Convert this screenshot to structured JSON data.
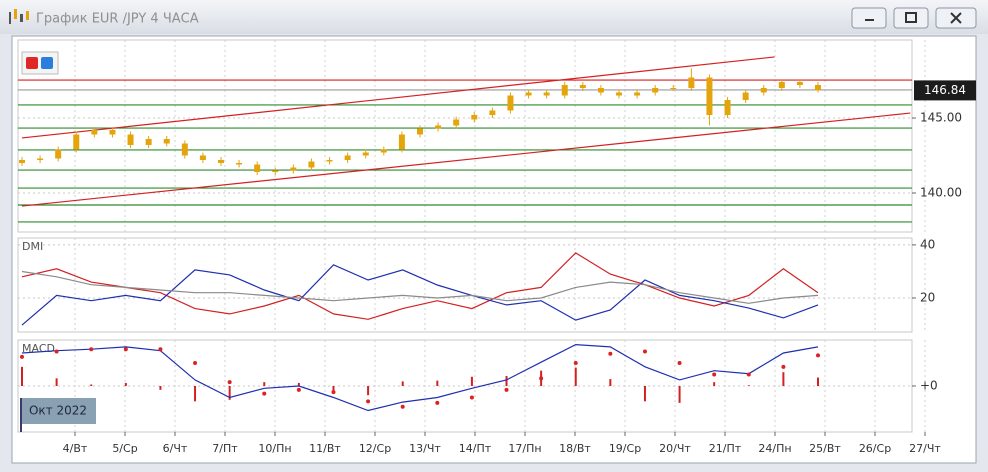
{
  "window": {
    "title": "График EUR /JPY  4 ЧАСА",
    "period_label": "Окт 2022"
  },
  "chart_data": [
    {
      "type": "candlestick",
      "open": [
        142.0,
        142.2,
        142.3,
        142.9,
        143.9,
        144.2,
        143.9,
        143.2,
        143.6,
        143.3,
        142.5,
        142.2,
        142.0,
        141.9,
        141.4,
        141.5,
        141.7,
        142.1,
        142.2,
        142.5,
        142.7,
        142.9,
        143.9,
        144.3,
        144.5,
        144.9,
        145.2,
        145.5,
        146.5,
        146.7,
        146.5,
        147.2,
        147.0,
        146.7,
        146.5,
        146.7,
        147.0,
        147.0,
        147.7,
        145.2,
        146.2,
        146.7,
        147.0,
        147.4,
        147.2
      ],
      "high": [
        142.4,
        142.5,
        143.1,
        144.1,
        144.4,
        144.4,
        144.1,
        143.8,
        143.8,
        143.5,
        142.7,
        142.4,
        142.2,
        142.1,
        141.7,
        141.9,
        142.3,
        142.4,
        142.7,
        142.9,
        143.1,
        144.1,
        144.5,
        144.7,
        145.1,
        145.4,
        145.7,
        146.7,
        146.9,
        146.9,
        147.4,
        147.4,
        147.2,
        146.9,
        146.9,
        147.2,
        147.2,
        148.3,
        147.9,
        146.4,
        146.9,
        147.2,
        147.6,
        147.6,
        147.4
      ],
      "low": [
        141.8,
        142.0,
        142.1,
        142.7,
        143.7,
        143.7,
        143.0,
        143.0,
        143.1,
        142.3,
        142.0,
        141.8,
        141.7,
        141.2,
        141.2,
        141.3,
        141.5,
        141.9,
        142.0,
        142.3,
        142.5,
        142.7,
        143.7,
        144.1,
        144.3,
        144.7,
        145.0,
        145.3,
        146.3,
        146.3,
        146.3,
        146.8,
        146.5,
        146.3,
        146.3,
        146.5,
        146.8,
        146.8,
        144.5,
        145.0,
        146.0,
        146.5,
        146.8,
        147.0,
        146.7
      ],
      "close": [
        142.2,
        142.3,
        142.9,
        143.9,
        144.2,
        143.9,
        143.2,
        143.6,
        143.3,
        142.5,
        142.2,
        142.0,
        141.9,
        141.4,
        141.5,
        141.7,
        142.1,
        142.2,
        142.5,
        142.7,
        142.9,
        143.9,
        144.3,
        144.5,
        144.9,
        145.2,
        145.5,
        146.5,
        146.7,
        146.5,
        147.2,
        147.0,
        146.7,
        146.5,
        146.7,
        147.0,
        147.0,
        147.7,
        145.2,
        146.2,
        146.7,
        147.0,
        147.4,
        147.2,
        146.84
      ],
      "color": "#e3a40c",
      "last_price": {
        "value": 146.84,
        "label": "146.84"
      },
      "levels": [
        {
          "value": 147.53,
          "color": "#d42020"
        },
        {
          "value": 146.87,
          "color": "#9a9a9a"
        },
        {
          "value": 145.87,
          "color": "#2e8b2e"
        },
        {
          "value": 144.33,
          "color": "#2e8b2e"
        },
        {
          "value": 142.87,
          "color": "#2e8b2e"
        },
        {
          "value": 141.53,
          "color": "#2e8b2e"
        },
        {
          "value": 140.33,
          "color": "#2e8b2e"
        },
        {
          "value": 139.2,
          "color": "#2e8b2e"
        },
        {
          "value": 138.07,
          "color": "#2e8b2e"
        }
      ],
      "trendlines": [
        {
          "x": [
            0,
            41.6
          ],
          "values": [
            143.67,
            149.07
          ],
          "color": "#d42020"
        },
        {
          "x": [
            0,
            49.1
          ],
          "values": [
            139.13,
            145.33
          ],
          "color": "#d42020"
        }
      ],
      "ylim": [
        137.4,
        150.2
      ],
      "yticks": [
        {
          "value": 145,
          "label": "145.00"
        },
        {
          "value": 140,
          "label": "140.00"
        }
      ]
    },
    {
      "type": "line",
      "title": "DMI",
      "series": [
        {
          "color": "#d42020",
          "values": [
            28,
            31,
            26,
            24,
            22,
            16,
            14,
            17,
            21,
            14,
            12,
            16,
            19,
            16,
            22,
            24,
            37,
            29,
            25,
            20,
            17,
            21,
            31,
            22
          ]
        },
        {
          "color": "#1f2fb0",
          "values": [
            9.8,
            21,
            19,
            21,
            19,
            30.6,
            28.7,
            23,
            19,
            32.5,
            26.8,
            30.6,
            24.9,
            21,
            17.4,
            19,
            11.7,
            15.5,
            26.8,
            21,
            19,
            16.2,
            12.5,
            17.4
          ]
        },
        {
          "color": "#8a8a8a",
          "values": [
            30,
            28,
            25,
            24,
            23,
            22,
            22,
            21,
            20,
            19,
            20,
            21,
            20,
            21,
            19,
            20,
            24,
            26,
            25,
            22,
            20,
            18,
            20,
            21
          ]
        }
      ],
      "ylim": [
        7.2,
        42.6
      ],
      "yticks": [
        20,
        40
      ]
    },
    {
      "type": "macd",
      "title": "MACD",
      "histogram": {
        "color": "#d42020",
        "values": [
          0.25,
          0.1,
          0.02,
          0.04,
          -0.05,
          -0.2,
          -0.18,
          0.05,
          0.04,
          -0.06,
          -0.12,
          0.06,
          0.07,
          0.12,
          0.13,
          0.2,
          0.24,
          0.09,
          -0.2,
          -0.22,
          0.05,
          0.01,
          0.18,
          0.11
        ]
      },
      "macd": {
        "color": "#1f2fb0",
        "values": [
          0.43,
          0.46,
          0.48,
          0.51,
          0.46,
          0.08,
          -0.15,
          -0.03,
          0,
          -0.15,
          -0.32,
          -0.21,
          -0.15,
          -0.03,
          0.08,
          0.31,
          0.54,
          0.51,
          0.25,
          0.08,
          0.2,
          0.16,
          0.43,
          0.51
        ]
      },
      "signal": {
        "color": "#e02020",
        "values": [
          0.38,
          0.45,
          0.48,
          0.48,
          0.48,
          0.3,
          0.05,
          -0.1,
          -0.05,
          -0.08,
          -0.2,
          -0.27,
          -0.22,
          -0.15,
          -0.05,
          0.1,
          0.3,
          0.42,
          0.45,
          0.3,
          0.15,
          0.15,
          0.25,
          0.4
        ]
      },
      "ylim": [
        -0.6,
        0.6
      ],
      "yticks": [
        {
          "value": 0,
          "label": "+0"
        }
      ],
      "categories": [
        "4/Вт",
        "5/Ср",
        "6/Чт",
        "7/Пт",
        "10/Пн",
        "11/Вт",
        "12/Ср",
        "13/Чт",
        "14/Пт",
        "17/Пн",
        "18/Вт",
        "19/Ср",
        "20/Чт",
        "21/Пт",
        "24/Пн",
        "25/Вт",
        "26/Ср",
        "27/Чт"
      ]
    }
  ]
}
